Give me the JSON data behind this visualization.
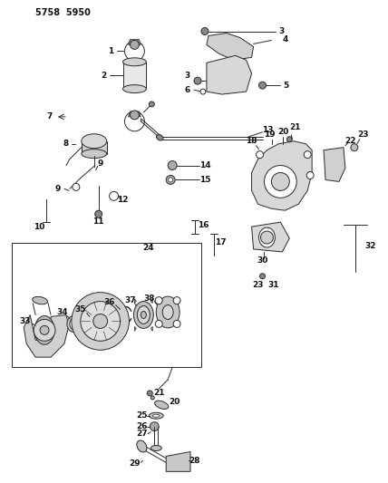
{
  "title": "5758  5950",
  "bg_color": "#ffffff",
  "lc": "#2a2a2a",
  "tc": "#111111",
  "figsize": [
    4.28,
    5.33
  ],
  "dpi": 100
}
